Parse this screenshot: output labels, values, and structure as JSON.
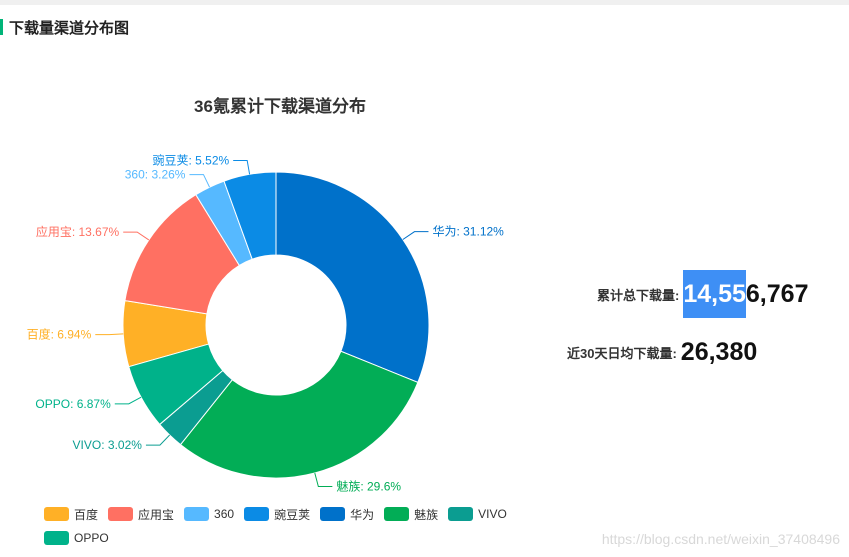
{
  "header": {
    "title": "下载量渠道分布图",
    "accent_color": "#00b478"
  },
  "chart_data": {
    "type": "pie",
    "donut": true,
    "title": "36氪累计下载渠道分布",
    "slices": [
      {
        "name": "百度",
        "value": 6.94,
        "label": "百度: 6.94%",
        "color": "#ffb026"
      },
      {
        "name": "应用宝",
        "value": 13.67,
        "label": "应用宝: 13.67%",
        "color": "#ff7062"
      },
      {
        "name": "360",
        "value": 3.26,
        "label": "360: 3.26%",
        "color": "#56b9ff"
      },
      {
        "name": "豌豆荚",
        "value": 5.52,
        "label": "豌豆荚: 5.52%",
        "color": "#0b8be5"
      },
      {
        "name": "华为",
        "value": 31.12,
        "label": "华为: 31.12%",
        "color": "#0071ca"
      },
      {
        "name": "魅族",
        "value": 29.6,
        "label": "魅族: 29.6%",
        "color": "#02ad56"
      },
      {
        "name": "VIVO",
        "value": 3.02,
        "label": "VIVO: 3.02%",
        "color": "#0b9d91"
      },
      {
        "name": "OPPO",
        "value": 6.87,
        "label": "OPPO: 6.87%",
        "color": "#00b28a"
      }
    ],
    "legend_position": "bottom"
  },
  "stats": {
    "total_label": "累计总下载量:",
    "total_value_highlighted": "14,55",
    "total_value_rest": "6,767",
    "avg_label": "近30天日均下载量:",
    "avg_value": "26,380"
  },
  "watermark": "https://blog.csdn.net/weixin_37408496"
}
